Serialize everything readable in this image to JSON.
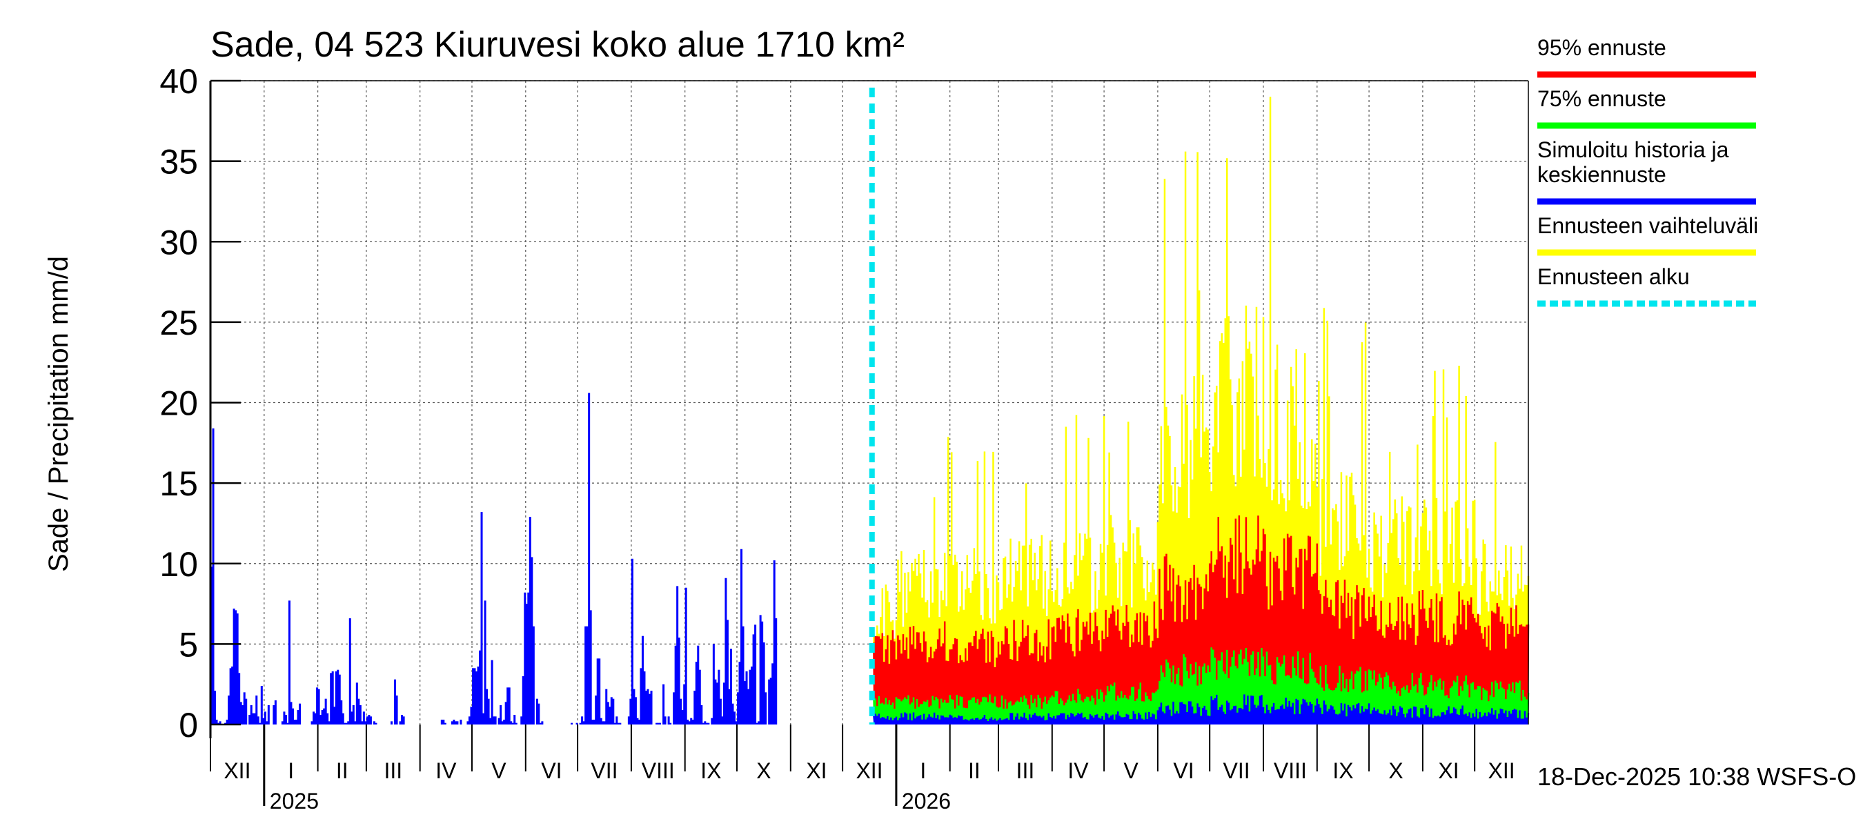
{
  "chart_data": {
    "type": "bar",
    "title": "Sade, 04 523 Kiuruvesi koko alue 1710 km²",
    "ylabel": "Sade / Precipitation   mm/d",
    "xlabel": "",
    "ylim": [
      0,
      40
    ],
    "yticks": [
      "0",
      "5",
      "10",
      "15",
      "20",
      "25",
      "30",
      "35",
      "40"
    ],
    "grid": true,
    "forecast_start": "2025-12-18",
    "months": [
      "XII",
      "I",
      "II",
      "III",
      "IV",
      "V",
      "VI",
      "VII",
      "VIII",
      "IX",
      "X",
      "XI",
      "XII",
      "I",
      "II",
      "III",
      "IV",
      "V",
      "VI",
      "VII",
      "VIII",
      "IX",
      "X",
      "XI",
      "XII"
    ],
    "years": [
      {
        "label": "2025",
        "month_index": 1
      },
      {
        "label": "2026",
        "month_index": 13
      }
    ],
    "history_series": {
      "name": "Simuloitu historia ja keskiennuste",
      "start_day": 0,
      "values": [
        9.8,
        18.4,
        2.1,
        0.3,
        0.1,
        0.2,
        0,
        0,
        0.1,
        0.3,
        1.8,
        3.5,
        3.6,
        7.2,
        7.1,
        6.9,
        3.2,
        1.4,
        1.2,
        2,
        1.6,
        0,
        0.6,
        1.2,
        0.7,
        0.7,
        1.8,
        0.5,
        0.1,
        2.4,
        0.4,
        0.8,
        0.2,
        1.2,
        0,
        0,
        1.2,
        1.5,
        0,
        0,
        0,
        0.2,
        0.8,
        0.6,
        0.1,
        7.7,
        1.4,
        1,
        0.3,
        0.3,
        0.9,
        1.3,
        0,
        0,
        0,
        0,
        0,
        0,
        0.2,
        0.8,
        0.7,
        2.3,
        2.2,
        0.6,
        0.9,
        1,
        1.6,
        0.7,
        0.2,
        3.2,
        3.3,
        1.1,
        3.3,
        3.4,
        3.1,
        1.5,
        0.7,
        0.1,
        0.1,
        0.2,
        6.6,
        0.8,
        1.2,
        0.2,
        2.6,
        1.6,
        1.2,
        0.2,
        0.8,
        0.2,
        0.5,
        0.6,
        0.5,
        0,
        0.2,
        0.1,
        0,
        0,
        0,
        0,
        0,
        0,
        0,
        0,
        0.2,
        0,
        2.8,
        1.8,
        0,
        0.2,
        0.6,
        0.5,
        0,
        0,
        0,
        0,
        0,
        0,
        0,
        0,
        0,
        0,
        0,
        0,
        0,
        0,
        0,
        0,
        0,
        0,
        0,
        0,
        0,
        0.3,
        0.3,
        0.1,
        0,
        0,
        0,
        0.2,
        0.3,
        0.2,
        0.2,
        0,
        0.3,
        0,
        0,
        0,
        0.2,
        0.5,
        1.1,
        3.5,
        3.5,
        3.3,
        3.6,
        4.6,
        13.2,
        0.7,
        7.7,
        2.2,
        1.6,
        0.4,
        4,
        0.5,
        0.5,
        0,
        0.4,
        1.2,
        0.2,
        0.3,
        1.4,
        2.3,
        2.3,
        0.2,
        0.1,
        0.6,
        0.1,
        0,
        0,
        0.5,
        3,
        8.2,
        7.5,
        8.2,
        12.9,
        10.4,
        6.1,
        0,
        1.6,
        1.3,
        0.1,
        0.2,
        0,
        0,
        0,
        0,
        0,
        0,
        0,
        0,
        0,
        0,
        0,
        0,
        0,
        0,
        0,
        0,
        0.1,
        0,
        0,
        0.1,
        0,
        0.1,
        0.5,
        0.2,
        6.1,
        6.1,
        20.6,
        7.1,
        0.3,
        0.3,
        1.8,
        4.1,
        4.1,
        0.4,
        0.2,
        0.2,
        2.2,
        1.4,
        1.1,
        1.7,
        1.6,
        0.1,
        0.5,
        0.1,
        0.1,
        0,
        0,
        0,
        0,
        0.5,
        1.6,
        10.3,
        2.2,
        1.7,
        0.4,
        0.3,
        3.5,
        5.5,
        3.3,
        2.1,
        2.2,
        1.9,
        2.1,
        0,
        0,
        0.1,
        0.1,
        0.1,
        0,
        2.5,
        0.5,
        0,
        0.5,
        0.1,
        0,
        2,
        4.9,
        8.6,
        5.4,
        1.6,
        0.9,
        2.5,
        8.5,
        0.3,
        0.2,
        0.4,
        0.3,
        2.1,
        3.9,
        4.9,
        3.4,
        1.2,
        0.1,
        0.2,
        0.1,
        0.1,
        0,
        0.4,
        5,
        2.8,
        2.6,
        3.4,
        1.6,
        0.5,
        2.6,
        9.1,
        6.5,
        2.2,
        4.7,
        1.3,
        0.8,
        0.2,
        2,
        3.9,
        10.9,
        6.1,
        2.7,
        3.3,
        2.2,
        3.4,
        3.6,
        5.6,
        6.2,
        0.1,
        0.2,
        6.8,
        6.4,
        5.1,
        2,
        0,
        2.8,
        2.9,
        3.8,
        10.2,
        6.6
      ]
    },
    "forecast_band_series": [
      {
        "name": "Ennusteen vaihteluväli",
        "color": "#ffff00"
      },
      {
        "name": "95% ennuste",
        "color": "#ff0000"
      },
      {
        "name": "75% ennuste",
        "color": "#00ff00"
      },
      {
        "name": "Simuloitu historia ja keskiennuste",
        "color": "#0000ff"
      }
    ],
    "forecast_monthly_profile": {
      "months": [
        "XII",
        "I",
        "II",
        "III",
        "IV",
        "V",
        "VI",
        "VII",
        "VIII",
        "IX",
        "X",
        "XI",
        "XII"
      ],
      "range_max": [
        8,
        10,
        10,
        11,
        11,
        12,
        20,
        24,
        22,
        15,
        13,
        13,
        11
      ],
      "p95": [
        5,
        5.5,
        5,
        5.5,
        6,
        6.5,
        9,
        11,
        10,
        7.5,
        7,
        7,
        6.5
      ],
      "p75": [
        1.5,
        1.5,
        1.5,
        1.5,
        1.8,
        2.2,
        3.5,
        4,
        3.8,
        3,
        2.7,
        2.5,
        2.2
      ],
      "median": [
        0.5,
        0.5,
        0.4,
        0.5,
        0.5,
        0.6,
        1,
        1.3,
        1.2,
        1,
        0.8,
        0.8,
        0.7
      ]
    },
    "legend_position": "right",
    "legend": [
      {
        "label": "95% ennuste",
        "color": "#ff0000",
        "style": "solid"
      },
      {
        "label": "75% ennuste",
        "color": "#00ff00",
        "style": "solid"
      },
      {
        "label": "Simuloitu historia ja",
        "label2": "keskiennuste",
        "color": "#0000ff",
        "style": "solid"
      },
      {
        "label": "Ennusteen vaihteluväli",
        "color": "#ffff00",
        "style": "solid"
      },
      {
        "label": "Ennusteen alku",
        "color": "#00e5ee",
        "style": "dashed"
      }
    ],
    "footer": "18-Dec-2025 10:38 WSFS-O"
  }
}
